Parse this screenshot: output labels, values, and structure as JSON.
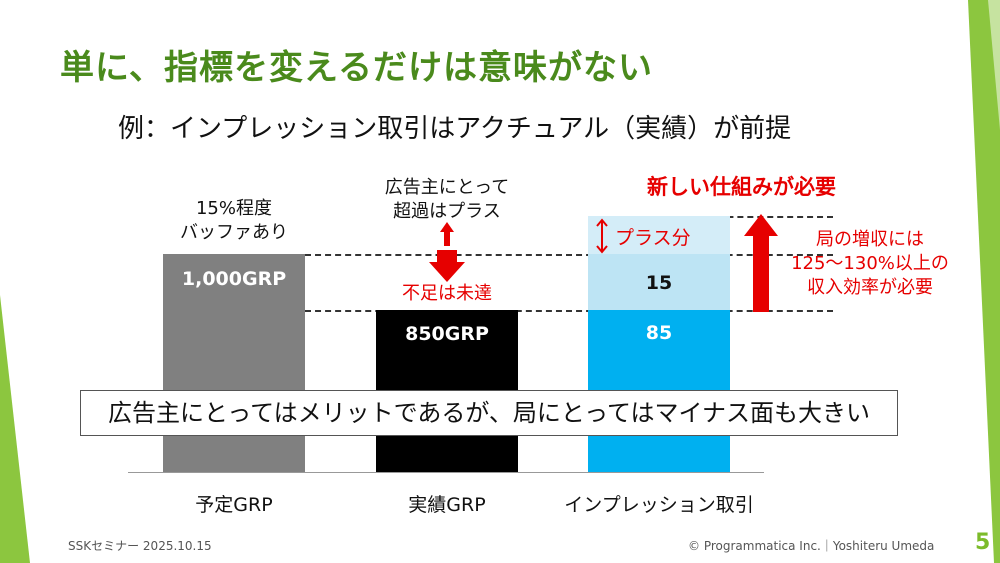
{
  "slide": {
    "title": "単に、指標を変えるだけは意味がない",
    "subtitle": "例：インプレッション取引はアクチュアル（実績）が前提",
    "page_number": "5",
    "footer_left": "SSKセミナー 2025.10.15",
    "footer_right": "© Programmatica Inc.｜Yoshiteru Umeda",
    "message": "広告主にとってはメリットであるが、局にとってはマイナス面も大きい",
    "annotations": {
      "buffer_line1": "15%程度",
      "buffer_line2": "バッファあり",
      "advertiser_line1": "広告主にとって",
      "advertiser_line2": "超過はプラス",
      "shortfall": "不足は未達",
      "new_system": "新しい仕組みが必要",
      "plus_part": "プラス分",
      "station_line1": "局の増収には",
      "station_line2": "125〜130%以上の",
      "station_line3": "収入効率が必要"
    }
  },
  "chart_data": {
    "type": "bar",
    "categories": [
      "予定GRP",
      "実績GRP",
      "インプレッション取引"
    ],
    "bars": [
      {
        "category": "予定GRP",
        "label": "1,000GRP",
        "value": 1000,
        "color": "#808080"
      },
      {
        "category": "実績GRP",
        "label": "850GRP",
        "value": 850,
        "color": "#000000"
      },
      {
        "category": "インプレッション取引",
        "segments": [
          {
            "label": "85",
            "value": 85,
            "color": "#00b0f0"
          },
          {
            "label": "15",
            "value": 15,
            "color": "#bde4f4"
          },
          {
            "label": "",
            "value": 15,
            "color": "#d4edf8"
          }
        ]
      }
    ],
    "colors": {
      "accent_green": "#4a8a1c",
      "alert_red": "#e60000"
    }
  }
}
